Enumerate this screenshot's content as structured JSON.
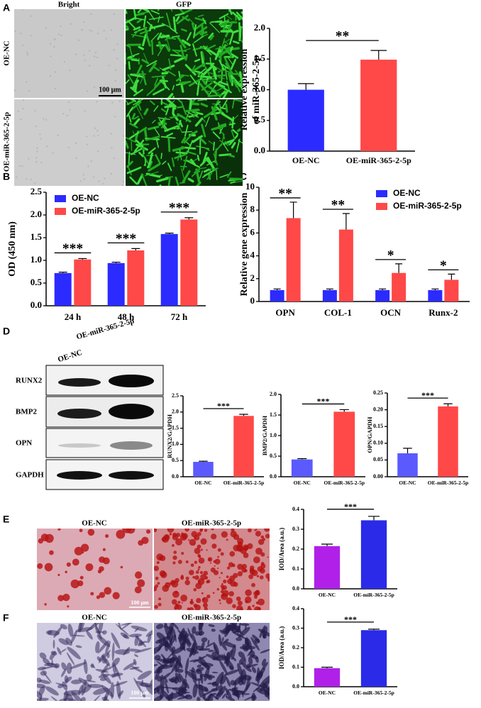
{
  "panels": {
    "labels": [
      "A",
      "B",
      "C",
      "D",
      "E",
      "F"
    ]
  },
  "images": {
    "a_columns": [
      "Bright",
      "GFP"
    ],
    "a_rows": [
      "OE-NC",
      "OE-miR-365-2-5p"
    ],
    "a_scale": "100 μm",
    "d_lanes": [
      "OE-NC",
      "OE-miR-365-2-5p"
    ],
    "d_bands": [
      "RUNX2",
      "BMP2",
      "OPN",
      "GAPDH"
    ],
    "e_columns": [
      "OE-NC",
      "OE-miR-365-2-5p"
    ],
    "e_scale": "100 μm",
    "f_columns": [
      "OE-NC",
      "OE-miR-365-2-5p"
    ],
    "f_scale": "100 μm"
  },
  "chart_data": [
    {
      "type": "bar",
      "ylabel": [
        "Relative expression",
        "of miR-365-2-5p"
      ],
      "categories": [
        "OE-NC",
        "OE-miR-365-2-5p"
      ],
      "values": [
        1.0,
        1.49
      ],
      "errors": [
        0.1,
        0.15
      ],
      "colors": [
        "#2b2bff",
        "#ff4848"
      ],
      "ylim": [
        0,
        2.0
      ],
      "yticks": [
        {
          "value": 0,
          "label": "0.0"
        },
        {
          "value": 0.5,
          "label": "0.5"
        },
        {
          "value": 1,
          "label": "1.0"
        },
        {
          "value": 1.5,
          "label": "1.5"
        },
        {
          "value": 2,
          "label": "2.0"
        }
      ],
      "annotations": [
        "**"
      ]
    },
    {
      "type": "grouped-bar",
      "ylabel": "OD (450 nm)",
      "categories": [
        "24 h",
        "48 h",
        "72 h"
      ],
      "series": [
        {
          "name": "OE-NC",
          "color": "#2b2bff",
          "values": [
            0.72,
            0.94,
            1.58
          ],
          "errors": [
            0.02,
            0.02,
            0.02
          ]
        },
        {
          "name": "OE-miR-365-2-5p",
          "color": "#ff4848",
          "values": [
            1.02,
            1.22,
            1.9
          ],
          "errors": [
            0.02,
            0.04,
            0.04
          ]
        }
      ],
      "ylim": [
        0,
        2.5
      ],
      "yticks": [
        {
          "value": 0,
          "label": "0.0"
        },
        {
          "value": 0.5,
          "label": "0.5"
        },
        {
          "value": 1,
          "label": "1.0"
        },
        {
          "value": 1.5,
          "label": "1.5"
        },
        {
          "value": 2,
          "label": "2.0"
        },
        {
          "value": 2.5,
          "label": "2.5"
        }
      ],
      "annotations": [
        "***",
        "***",
        "***"
      ],
      "legend": "upper left"
    },
    {
      "type": "grouped-bar",
      "ylabel": "Relative gene expression",
      "categories": [
        "OPN",
        "COL-1",
        "OCN",
        "Runx-2"
      ],
      "series": [
        {
          "name": "OE-NC",
          "color": "#2b2bff",
          "values": [
            1,
            1,
            1,
            1
          ],
          "errors": [
            0.1,
            0.1,
            0.1,
            0.1
          ]
        },
        {
          "name": "OE-miR-365-2-5p",
          "color": "#ff4848",
          "values": [
            7.3,
            6.3,
            2.5,
            1.9
          ],
          "errors": [
            1.4,
            1.4,
            0.8,
            0.5
          ]
        }
      ],
      "ylim": [
        0,
        10
      ],
      "yticks": [
        0,
        2,
        4,
        6,
        8,
        10
      ],
      "annotations": [
        "**",
        "**",
        "*",
        "*"
      ],
      "legend": "upper right"
    },
    {
      "type": "bar",
      "ylabel": "RUNX2/GAPDH",
      "categories": [
        "OE-NC",
        "OE-miR-365-2-5p"
      ],
      "values": [
        0.46,
        1.88
      ],
      "errors": [
        0.02,
        0.05
      ],
      "colors": [
        "#5a5aff",
        "#ff4848"
      ],
      "ylim": [
        0,
        2.5
      ],
      "yticks": [
        {
          "value": 0,
          "label": "0.0"
        },
        {
          "value": 0.5,
          "label": "0.5"
        },
        {
          "value": 1,
          "label": "1.0"
        },
        {
          "value": 1.5,
          "label": "1.5"
        },
        {
          "value": 2,
          "label": "2.0"
        },
        {
          "value": 2.5,
          "label": "2.5"
        }
      ],
      "annotations": [
        "***"
      ]
    },
    {
      "type": "bar",
      "ylabel": "BMP2/GAPDH",
      "categories": [
        "OE-NC",
        "OE-miR-365-2-5p"
      ],
      "values": [
        0.42,
        1.58
      ],
      "errors": [
        0.02,
        0.05
      ],
      "colors": [
        "#5a5aff",
        "#ff4848"
      ],
      "ylim": [
        0,
        2.0
      ],
      "yticks": [
        {
          "value": 0,
          "label": "0.0"
        },
        {
          "value": 0.5,
          "label": "0.5"
        },
        {
          "value": 1,
          "label": "1.0"
        },
        {
          "value": 1.5,
          "label": "1.5"
        },
        {
          "value": 2,
          "label": "2.0"
        }
      ],
      "annotations": [
        "***"
      ]
    },
    {
      "type": "bar",
      "ylabel": "OPN/GAPDH",
      "categories": [
        "OE-NC",
        "OE-miR-365-2-5p"
      ],
      "values": [
        0.07,
        0.21
      ],
      "errors": [
        0.015,
        0.008
      ],
      "colors": [
        "#5a5aff",
        "#ff4848"
      ],
      "ylim": [
        0,
        0.25
      ],
      "yticks": [
        {
          "value": 0,
          "label": "0.00"
        },
        {
          "value": 0.05,
          "label": "0.05"
        },
        {
          "value": 0.1,
          "label": "0.10"
        },
        {
          "value": 0.15,
          "label": "0.15"
        },
        {
          "value": 0.2,
          "label": "0.20"
        },
        {
          "value": 0.25,
          "label": "0.25"
        }
      ],
      "annotations": [
        "***"
      ]
    },
    {
      "type": "bar",
      "ylabel": "IOD/Area (a.u.)",
      "categories": [
        "OE-NC",
        "OE-miR-365-2-5p"
      ],
      "values": [
        0.215,
        0.345
      ],
      "errors": [
        0.01,
        0.02
      ],
      "colors": [
        "#b020e8",
        "#2a2ae8"
      ],
      "ylim": [
        0,
        0.4
      ],
      "yticks": [
        {
          "value": 0,
          "label": "0.0"
        },
        {
          "value": 0.1,
          "label": "0.1"
        },
        {
          "value": 0.2,
          "label": "0.2"
        },
        {
          "value": 0.3,
          "label": "0.3"
        },
        {
          "value": 0.4,
          "label": "0.4"
        }
      ],
      "annotations": [
        "***"
      ]
    },
    {
      "type": "bar",
      "ylabel": "IOD/Area (a.u.)",
      "categories": [
        "OE-NC",
        "OE-miR-365-2-5p"
      ],
      "values": [
        0.095,
        0.29
      ],
      "errors": [
        0.005,
        0.005
      ],
      "colors": [
        "#b020e8",
        "#2a2ae8"
      ],
      "ylim": [
        0,
        0.4
      ],
      "yticks": [
        {
          "value": 0,
          "label": "0.0"
        },
        {
          "value": 0.1,
          "label": "0.1"
        },
        {
          "value": 0.2,
          "label": "0.2"
        },
        {
          "value": 0.3,
          "label": "0.3"
        },
        {
          "value": 0.4,
          "label": "0.4"
        }
      ],
      "annotations": [
        "***"
      ]
    }
  ]
}
